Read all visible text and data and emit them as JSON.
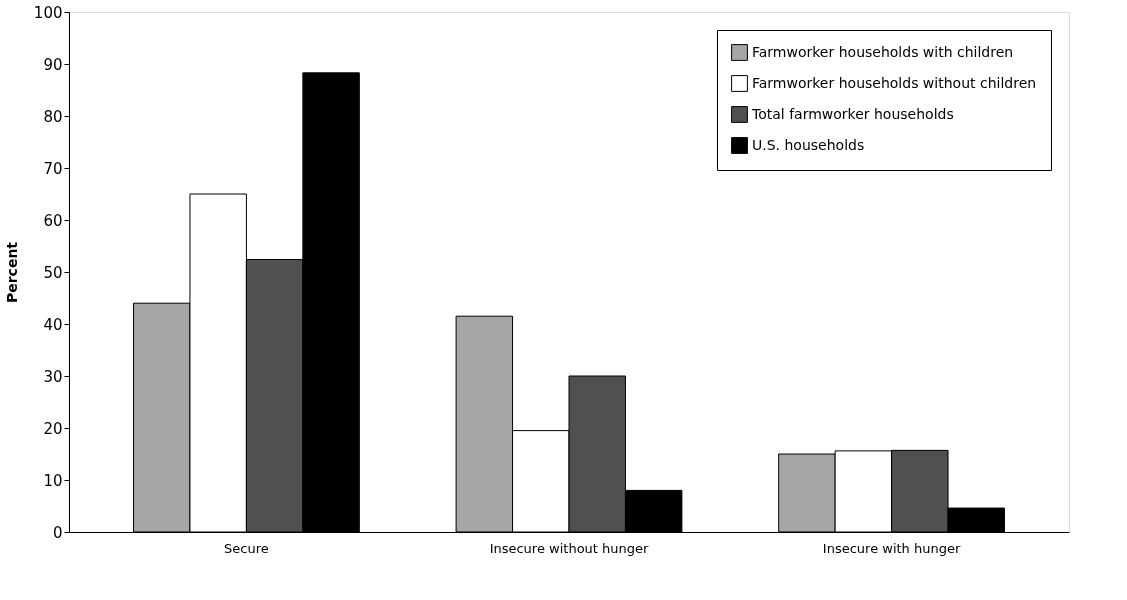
{
  "chart_data": {
    "type": "bar",
    "ylabel": "Percent",
    "categories": [
      "Secure",
      "Insecure without hunger",
      "Insecure with hunger"
    ],
    "series": [
      {
        "name": "Farmworker households with children",
        "color": "#a6a6a6",
        "values": [
          44,
          41.5,
          15
        ]
      },
      {
        "name": "Farmworker households without children",
        "color": "#ffffff",
        "values": [
          65,
          19.5,
          15.6
        ]
      },
      {
        "name": "Total farmworker households",
        "color": "#505050",
        "values": [
          52.4,
          30,
          15.7
        ]
      },
      {
        "name": "U.S. households",
        "color": "#000000",
        "values": [
          88.3,
          8,
          4.6
        ]
      }
    ],
    "ylim": [
      0,
      100
    ],
    "yticks": [
      0,
      10,
      20,
      30,
      40,
      50,
      60,
      70,
      80,
      90,
      100
    ],
    "grid": false,
    "legend": "top right"
  }
}
